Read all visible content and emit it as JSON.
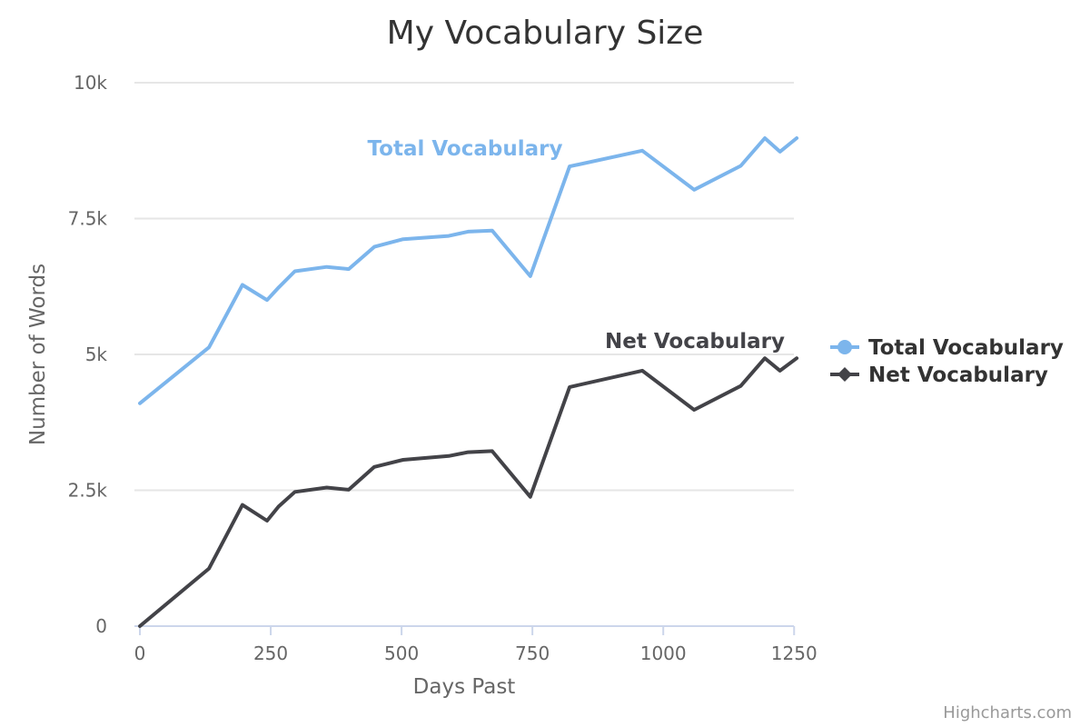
{
  "chart_data": {
    "type": "line",
    "title": "My Vocabulary Size",
    "xlabel": "Days Past",
    "ylabel": "Number of Words",
    "xlim": [
      0,
      1260
    ],
    "ylim": [
      0,
      10000
    ],
    "x_ticks": [
      {
        "value": 0,
        "label": "0"
      },
      {
        "value": 250,
        "label": "250"
      },
      {
        "value": 500,
        "label": "500"
      },
      {
        "value": 750,
        "label": "750"
      },
      {
        "value": 1000,
        "label": "1000"
      },
      {
        "value": 1250,
        "label": "1250"
      }
    ],
    "y_ticks": [
      {
        "value": 0,
        "label": "0"
      },
      {
        "value": 2500,
        "label": "2.5k"
      },
      {
        "value": 5000,
        "label": "5k"
      },
      {
        "value": 7500,
        "label": "7.5k"
      },
      {
        "value": 10000,
        "label": "10k"
      }
    ],
    "grid": true,
    "legend_position": "right",
    "series": [
      {
        "name": "Total Vocabulary",
        "color": "#7cb5ec",
        "marker": "circle",
        "x": [
          0,
          132,
          196,
          243,
          265,
          296,
          357,
          399,
          448,
          503,
          590,
          627,
          673,
          746,
          821,
          960,
          1059,
          1148,
          1194,
          1223,
          1255
        ],
        "y": [
          4100,
          5130,
          6280,
          6000,
          6230,
          6530,
          6610,
          6570,
          6980,
          7120,
          7180,
          7260,
          7280,
          6440,
          8460,
          8750,
          8030,
          8470,
          8980,
          8730,
          8980
        ]
      },
      {
        "name": "Net Vocabulary",
        "color": "#434348",
        "marker": "diamond",
        "x": [
          0,
          132,
          196,
          243,
          265,
          296,
          357,
          399,
          448,
          503,
          590,
          627,
          673,
          746,
          821,
          960,
          1059,
          1148,
          1194,
          1223,
          1255
        ],
        "y": [
          0,
          1060,
          2230,
          1940,
          2200,
          2470,
          2550,
          2510,
          2930,
          3060,
          3130,
          3200,
          3220,
          2380,
          4400,
          4700,
          3980,
          4420,
          4930,
          4700,
          4930
        ]
      }
    ],
    "credits": "Highcharts.com"
  }
}
